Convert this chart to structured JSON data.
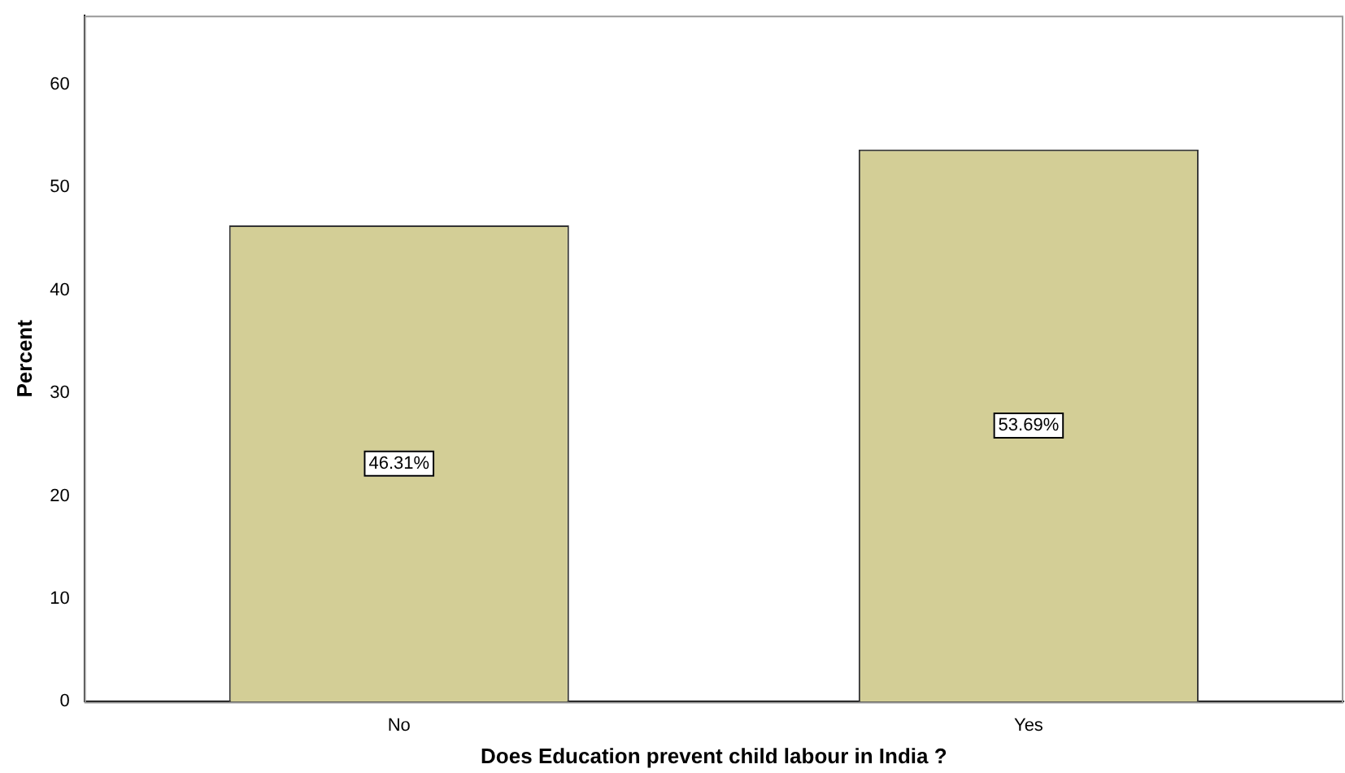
{
  "chart_data": {
    "type": "bar",
    "xlabel": "Does Education prevent child labour in India ?",
    "ylabel": "Percent",
    "categories": [
      "No",
      "Yes"
    ],
    "values": [
      46.31,
      53.69
    ],
    "value_labels": [
      "46.31%",
      "53.69%"
    ],
    "color": "#d3ce96",
    "ylim": [
      0,
      66.7
    ],
    "yticks": [
      0,
      10,
      20,
      30,
      40,
      50,
      60
    ],
    "grid": false,
    "legend": false
  }
}
